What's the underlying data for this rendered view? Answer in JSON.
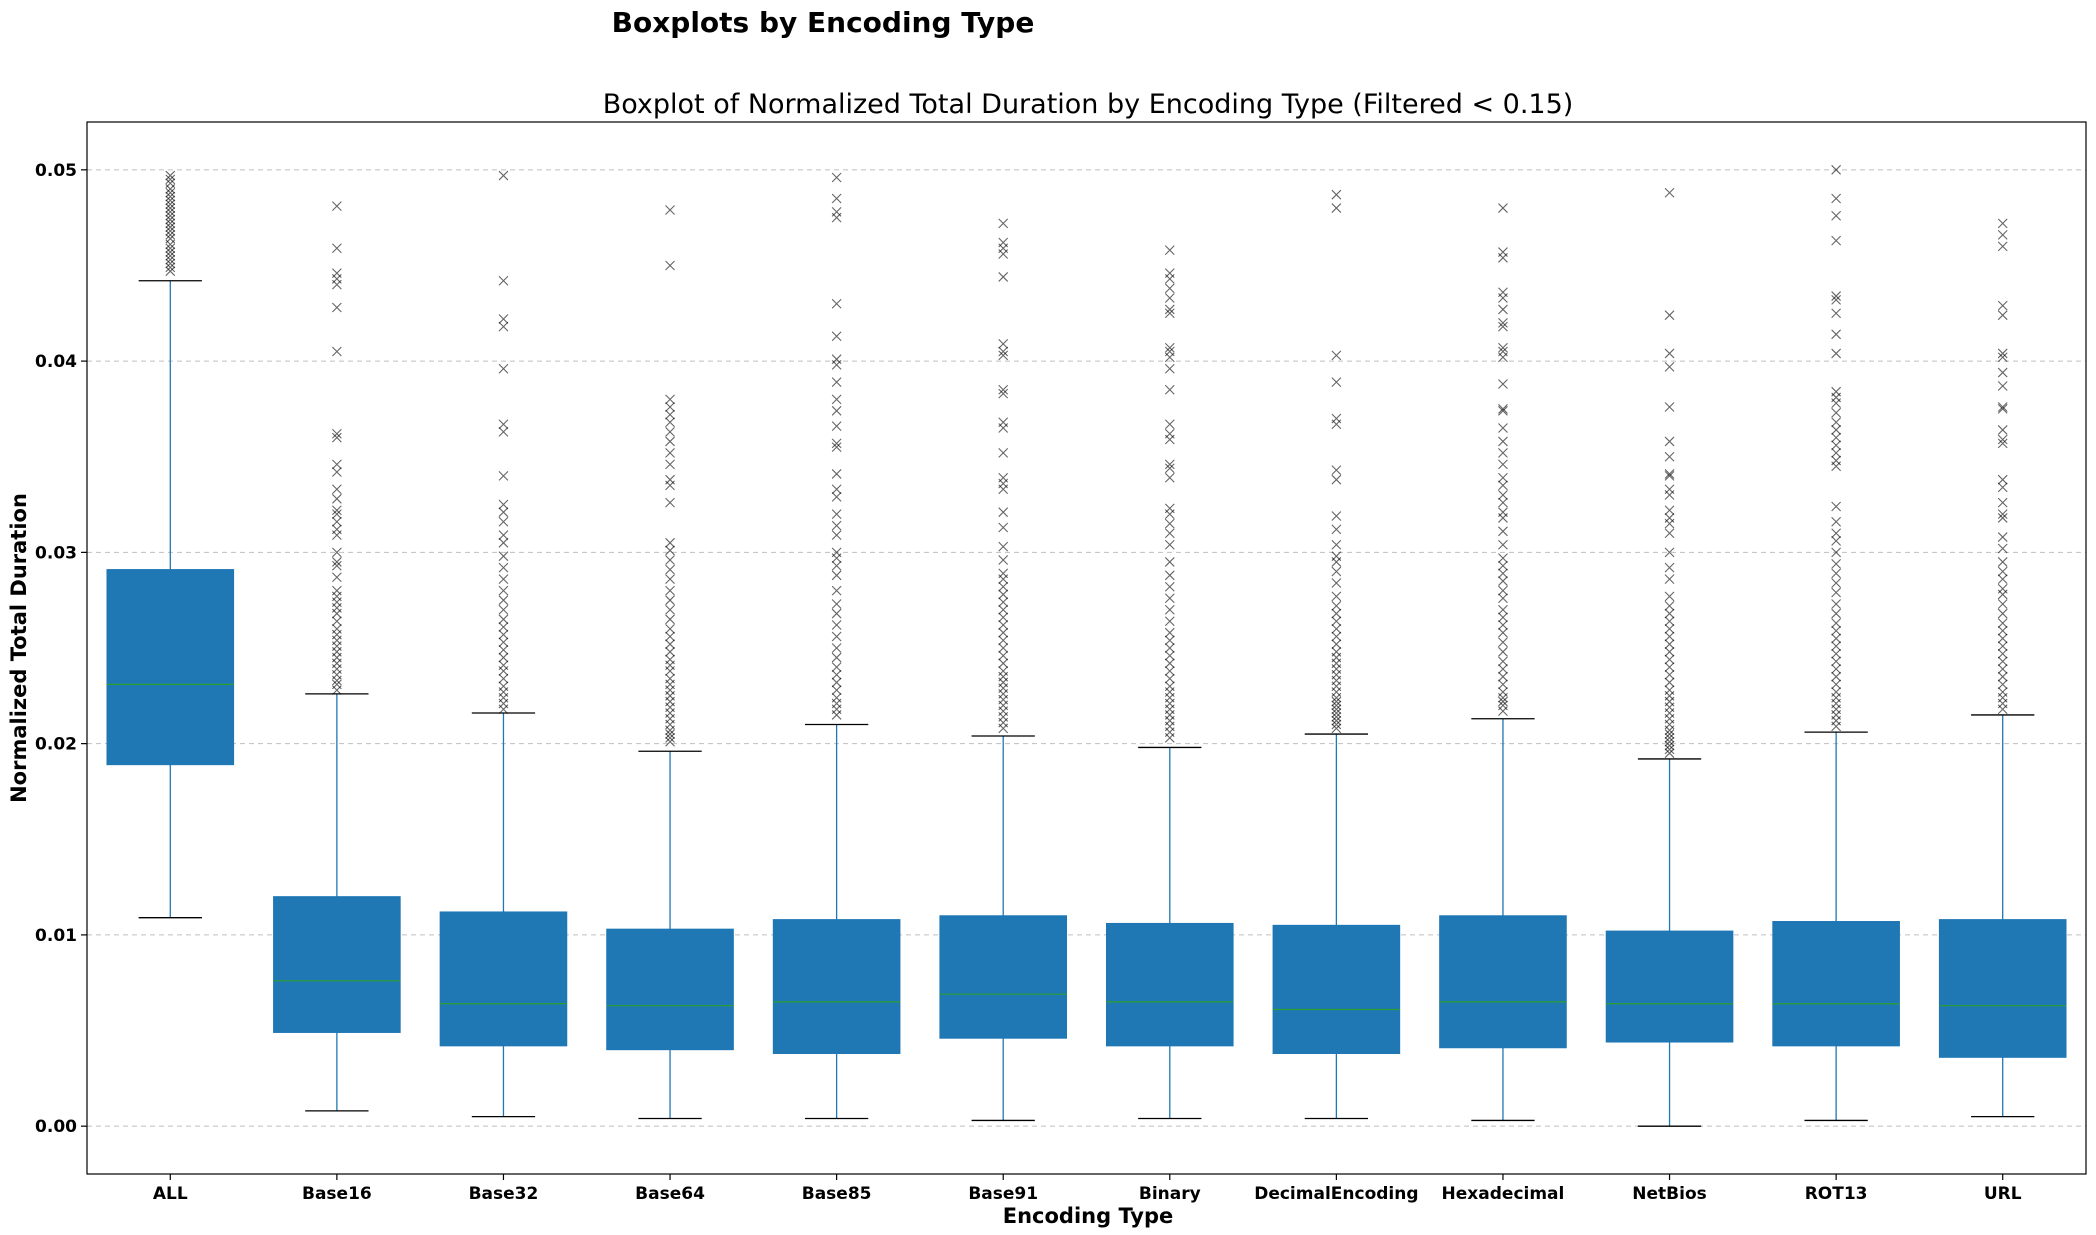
{
  "figure": {
    "suptitle": "Boxplots by Encoding Type"
  },
  "colors": {
    "box": "#1f77b4",
    "median": "#2ca02c",
    "whisker": "#1f77b4",
    "cap": "#000000",
    "flier": "#000000",
    "grid": "#b0b0b0"
  },
  "chart_data": {
    "type": "boxplot",
    "title": "Boxplot of Normalized Total Duration by Encoding Type (Filtered < 0.15)",
    "xlabel": "Encoding Type",
    "ylabel": "Normalized Total Duration",
    "ylim": [
      -0.0025,
      0.0525
    ],
    "yticks": [
      0.0,
      0.01,
      0.02,
      0.03,
      0.04,
      0.05
    ],
    "ytick_labels": [
      "0.00",
      "0.01",
      "0.02",
      "0.03",
      "0.04",
      "0.05"
    ],
    "grid": "y-axis dashed",
    "flier_marker": "x",
    "categories": [
      "ALL",
      "Base16",
      "Base32",
      "Base64",
      "Base85",
      "Base91",
      "Binary",
      "DecimalEncoding",
      "Hexadecimal",
      "NetBios",
      "ROT13",
      "URL"
    ],
    "boxes": [
      {
        "name": "ALL",
        "whislo": 0.0109,
        "q1": 0.0189,
        "median": 0.0231,
        "q3": 0.0291,
        "whishi": 0.0442,
        "fliers": [
          0.0447,
          0.0449,
          0.0451,
          0.0453,
          0.0455,
          0.0457,
          0.0459,
          0.0461,
          0.0464,
          0.0466,
          0.0468,
          0.047,
          0.0472,
          0.0474,
          0.0476,
          0.0478,
          0.048,
          0.0482,
          0.0484,
          0.0486,
          0.0488,
          0.049,
          0.0493,
          0.0495,
          0.0497
        ]
      },
      {
        "name": "Base16",
        "whislo": 0.0008,
        "q1": 0.0049,
        "median": 0.0076,
        "q3": 0.012,
        "whishi": 0.0226,
        "fliers": [
          0.0228,
          0.0231,
          0.0233,
          0.0236,
          0.0239,
          0.0242,
          0.0245,
          0.0248,
          0.0251,
          0.0254,
          0.0257,
          0.026,
          0.0264,
          0.0268,
          0.0271,
          0.0274,
          0.0277,
          0.028,
          0.0287,
          0.0293,
          0.0295,
          0.03,
          0.0309,
          0.0312,
          0.0316,
          0.032,
          0.0322,
          0.0328,
          0.0333,
          0.0342,
          0.0346,
          0.036,
          0.0362,
          0.0405,
          0.0428,
          0.044,
          0.0443,
          0.0446,
          0.0459,
          0.0481
        ]
      },
      {
        "name": "Base32",
        "whislo": 0.0005,
        "q1": 0.0042,
        "median": 0.0064,
        "q3": 0.0112,
        "whishi": 0.0216,
        "fliers": [
          0.0218,
          0.0221,
          0.0224,
          0.0227,
          0.023,
          0.0234,
          0.0238,
          0.0241,
          0.0245,
          0.0249,
          0.0253,
          0.0257,
          0.0261,
          0.0265,
          0.027,
          0.0275,
          0.028,
          0.0286,
          0.0292,
          0.0298,
          0.0305,
          0.0309,
          0.0316,
          0.0321,
          0.0325,
          0.034,
          0.0363,
          0.0367,
          0.0396,
          0.0418,
          0.0422,
          0.0442,
          0.0497
        ]
      },
      {
        "name": "Base64",
        "whislo": 0.0004,
        "q1": 0.004,
        "median": 0.0063,
        "q3": 0.0103,
        "whishi": 0.0196,
        "fliers": [
          0.0201,
          0.0203,
          0.0205,
          0.0207,
          0.021,
          0.0213,
          0.0216,
          0.0219,
          0.0222,
          0.0225,
          0.0228,
          0.0231,
          0.0234,
          0.0238,
          0.0241,
          0.0244,
          0.0248,
          0.0252,
          0.0256,
          0.026,
          0.0265,
          0.027,
          0.0275,
          0.028,
          0.0286,
          0.0291,
          0.0296,
          0.0301,
          0.0305,
          0.0326,
          0.0335,
          0.0338,
          0.0346,
          0.0352,
          0.0358,
          0.0363,
          0.0368,
          0.0372,
          0.0376,
          0.038,
          0.045,
          0.0479
        ]
      },
      {
        "name": "Base85",
        "whislo": 0.0004,
        "q1": 0.0038,
        "median": 0.0065,
        "q3": 0.0108,
        "whishi": 0.021,
        "fliers": [
          0.0215,
          0.0218,
          0.0221,
          0.0224,
          0.0228,
          0.0232,
          0.0236,
          0.024,
          0.0245,
          0.025,
          0.0256,
          0.0262,
          0.0268,
          0.0273,
          0.028,
          0.0288,
          0.0293,
          0.0297,
          0.03,
          0.0309,
          0.0314,
          0.032,
          0.0329,
          0.0333,
          0.0341,
          0.0355,
          0.0357,
          0.0366,
          0.0374,
          0.038,
          0.0389,
          0.0398,
          0.0401,
          0.0413,
          0.043,
          0.0475,
          0.0478,
          0.0485,
          0.0496
        ]
      },
      {
        "name": "Base91",
        "whislo": 0.0003,
        "q1": 0.0046,
        "median": 0.0069,
        "q3": 0.011,
        "whishi": 0.0204,
        "fliers": [
          0.0208,
          0.0211,
          0.0214,
          0.0217,
          0.022,
          0.0223,
          0.0226,
          0.0229,
          0.0232,
          0.0235,
          0.0238,
          0.0242,
          0.0246,
          0.025,
          0.0254,
          0.0258,
          0.0262,
          0.0266,
          0.027,
          0.0274,
          0.0278,
          0.0282,
          0.0286,
          0.0289,
          0.0296,
          0.0303,
          0.0313,
          0.0321,
          0.0333,
          0.0336,
          0.0339,
          0.0352,
          0.0365,
          0.0368,
          0.0383,
          0.0385,
          0.0403,
          0.0405,
          0.0409,
          0.0444,
          0.0456,
          0.0459,
          0.0462,
          0.0472
        ]
      },
      {
        "name": "Binary",
        "whislo": 0.0004,
        "q1": 0.0042,
        "median": 0.0065,
        "q3": 0.0106,
        "whishi": 0.0198,
        "fliers": [
          0.0203,
          0.0206,
          0.0209,
          0.0212,
          0.0215,
          0.0218,
          0.0221,
          0.0224,
          0.0227,
          0.023,
          0.0234,
          0.0238,
          0.0242,
          0.0246,
          0.025,
          0.0254,
          0.0258,
          0.0264,
          0.027,
          0.0276,
          0.0282,
          0.0288,
          0.0295,
          0.0304,
          0.031,
          0.0315,
          0.032,
          0.0323,
          0.0339,
          0.0344,
          0.0346,
          0.0359,
          0.0362,
          0.0367,
          0.0385,
          0.0396,
          0.0402,
          0.0405,
          0.0407,
          0.0425,
          0.0427,
          0.0433,
          0.0438,
          0.0443,
          0.0446,
          0.0458
        ]
      },
      {
        "name": "DecimalEncoding",
        "whislo": 0.0004,
        "q1": 0.0038,
        "median": 0.0061,
        "q3": 0.0105,
        "whishi": 0.0205,
        "fliers": [
          0.0208,
          0.021,
          0.0212,
          0.0214,
          0.0216,
          0.0218,
          0.022,
          0.0222,
          0.0224,
          0.0227,
          0.023,
          0.0233,
          0.0236,
          0.0239,
          0.0242,
          0.0245,
          0.0248,
          0.0252,
          0.0256,
          0.026,
          0.0264,
          0.0268,
          0.0272,
          0.0277,
          0.0284,
          0.029,
          0.0295,
          0.0298,
          0.0304,
          0.0312,
          0.0319,
          0.0338,
          0.0343,
          0.0367,
          0.037,
          0.0389,
          0.0403,
          0.048,
          0.0487
        ]
      },
      {
        "name": "Hexadecimal",
        "whislo": 0.0003,
        "q1": 0.0041,
        "median": 0.0065,
        "q3": 0.011,
        "whishi": 0.0213,
        "fliers": [
          0.0217,
          0.022,
          0.0222,
          0.0224,
          0.0227,
          0.0231,
          0.0235,
          0.0239,
          0.0243,
          0.0248,
          0.0253,
          0.0258,
          0.0262,
          0.0266,
          0.027,
          0.0276,
          0.028,
          0.0285,
          0.0289,
          0.0293,
          0.0297,
          0.0304,
          0.0311,
          0.0318,
          0.0321,
          0.0326,
          0.033,
          0.0335,
          0.0339,
          0.0346,
          0.0352,
          0.0358,
          0.0365,
          0.0374,
          0.0375,
          0.0388,
          0.0402,
          0.0405,
          0.0407,
          0.0418,
          0.042,
          0.0427,
          0.0433,
          0.0436,
          0.0454,
          0.0457,
          0.048
        ]
      },
      {
        "name": "NetBios",
        "whislo": 0.0,
        "q1": 0.0044,
        "median": 0.0064,
        "q3": 0.0102,
        "whishi": 0.0192,
        "fliers": [
          0.0195,
          0.0197,
          0.0199,
          0.0201,
          0.0203,
          0.0205,
          0.0207,
          0.021,
          0.0213,
          0.0216,
          0.0219,
          0.0222,
          0.0225,
          0.0228,
          0.0232,
          0.0236,
          0.024,
          0.0244,
          0.0248,
          0.0252,
          0.0256,
          0.026,
          0.0264,
          0.0268,
          0.0272,
          0.0277,
          0.0286,
          0.0292,
          0.03,
          0.031,
          0.0315,
          0.0318,
          0.0322,
          0.033,
          0.0333,
          0.034,
          0.0341,
          0.035,
          0.0358,
          0.0376,
          0.0397,
          0.0404,
          0.0424,
          0.0488
        ]
      },
      {
        "name": "ROT13",
        "whislo": 0.0003,
        "q1": 0.0042,
        "median": 0.0064,
        "q3": 0.0107,
        "whishi": 0.0206,
        "fliers": [
          0.0209,
          0.0212,
          0.0215,
          0.0218,
          0.0221,
          0.0224,
          0.0227,
          0.0231,
          0.0235,
          0.0239,
          0.0243,
          0.0247,
          0.0251,
          0.0255,
          0.0259,
          0.0263,
          0.0268,
          0.0273,
          0.0279,
          0.0284,
          0.0289,
          0.0294,
          0.03,
          0.0306,
          0.031,
          0.0316,
          0.0324,
          0.0345,
          0.0348,
          0.0352,
          0.0356,
          0.036,
          0.0364,
          0.0368,
          0.0373,
          0.0378,
          0.0381,
          0.0384,
          0.0404,
          0.0414,
          0.0425,
          0.0432,
          0.0434,
          0.0463,
          0.0476,
          0.0485,
          0.05
        ]
      },
      {
        "name": "URL",
        "whislo": 0.0005,
        "q1": 0.0036,
        "median": 0.0063,
        "q3": 0.0108,
        "whishi": 0.0215,
        "fliers": [
          0.0218,
          0.0221,
          0.0224,
          0.0227,
          0.0231,
          0.0235,
          0.0239,
          0.0243,
          0.0247,
          0.0251,
          0.0255,
          0.0259,
          0.0263,
          0.0268,
          0.0273,
          0.0278,
          0.0281,
          0.0286,
          0.029,
          0.0295,
          0.0302,
          0.0308,
          0.0318,
          0.032,
          0.0326,
          0.0334,
          0.0338,
          0.0357,
          0.0359,
          0.0364,
          0.0375,
          0.0376,
          0.0387,
          0.0394,
          0.0402,
          0.0404,
          0.0424,
          0.0429,
          0.046,
          0.0466,
          0.0472
        ]
      }
    ]
  }
}
